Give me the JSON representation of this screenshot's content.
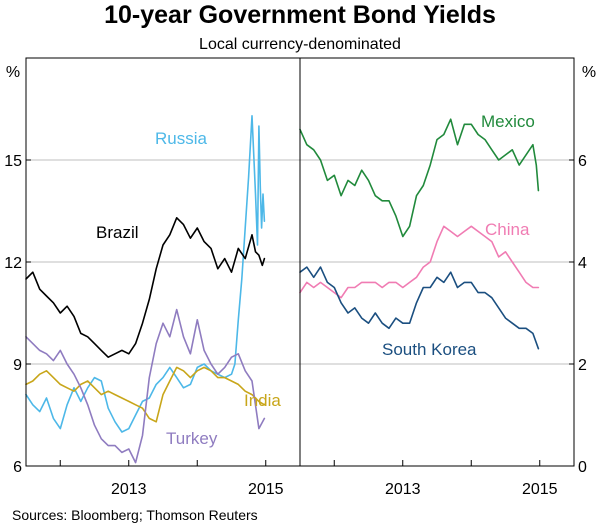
{
  "title": "10-year Government Bond Yields",
  "subtitle": "Local currency-denominated",
  "source": "Sources:   Bloomberg; Thomson Reuters",
  "chart_data": [
    {
      "type": "line",
      "panel": "left",
      "ylabel": "%",
      "ylim": [
        6,
        18
      ],
      "yticks": [
        6,
        9,
        12,
        15
      ],
      "xlim": [
        2011.5,
        2015.5
      ],
      "xticks": [
        2013,
        2015
      ],
      "xtick_labels": [
        "2013",
        "2015"
      ],
      "grid": true,
      "series": [
        {
          "name": "Russia",
          "color": "#4db8e8",
          "x": [
            2011.5,
            2011.6,
            2011.7,
            2011.8,
            2011.9,
            2012.0,
            2012.1,
            2012.2,
            2012.3,
            2012.4,
            2012.5,
            2012.6,
            2012.7,
            2012.8,
            2012.9,
            2013.0,
            2013.1,
            2013.2,
            2013.3,
            2013.4,
            2013.5,
            2013.6,
            2013.7,
            2013.8,
            2013.9,
            2014.0,
            2014.1,
            2014.2,
            2014.3,
            2014.4,
            2014.5,
            2014.55,
            2014.6,
            2014.65,
            2014.7,
            2014.75,
            2014.8,
            2014.85,
            2014.88,
            2014.9,
            2014.92,
            2014.94,
            2014.96,
            2014.98
          ],
          "values": [
            8.1,
            7.8,
            7.6,
            8.0,
            7.4,
            7.1,
            7.8,
            8.3,
            7.9,
            8.3,
            8.6,
            8.5,
            7.7,
            7.3,
            7.0,
            7.1,
            7.5,
            7.9,
            8.0,
            8.4,
            8.6,
            8.9,
            8.6,
            8.3,
            8.4,
            8.9,
            9.0,
            8.8,
            8.7,
            8.6,
            8.7,
            9.0,
            10.3,
            11.5,
            13.0,
            14.5,
            16.3,
            14.0,
            12.5,
            16.0,
            14.2,
            13.0,
            14.0,
            13.2
          ]
        },
        {
          "name": "Brazil",
          "color": "#000000",
          "x": [
            2011.5,
            2011.6,
            2011.7,
            2011.8,
            2011.9,
            2012.0,
            2012.1,
            2012.2,
            2012.3,
            2012.4,
            2012.5,
            2012.6,
            2012.7,
            2012.8,
            2012.9,
            2013.0,
            2013.1,
            2013.2,
            2013.3,
            2013.4,
            2013.5,
            2013.6,
            2013.7,
            2013.8,
            2013.9,
            2014.0,
            2014.1,
            2014.2,
            2014.3,
            2014.4,
            2014.5,
            2014.6,
            2014.7,
            2014.8,
            2014.85,
            2014.9,
            2014.95,
            2014.98
          ],
          "values": [
            11.5,
            11.7,
            11.2,
            11.0,
            10.8,
            10.5,
            10.7,
            10.4,
            9.9,
            9.8,
            9.6,
            9.4,
            9.2,
            9.3,
            9.4,
            9.3,
            9.6,
            10.2,
            10.9,
            11.8,
            12.5,
            12.8,
            13.3,
            13.1,
            12.7,
            13.0,
            12.6,
            12.4,
            11.8,
            12.1,
            11.7,
            12.4,
            12.1,
            12.8,
            12.3,
            12.2,
            11.9,
            12.1
          ]
        },
        {
          "name": "India",
          "color": "#c8a61a",
          "x": [
            2011.5,
            2011.6,
            2011.7,
            2011.8,
            2011.9,
            2012.0,
            2012.1,
            2012.2,
            2012.3,
            2012.4,
            2012.5,
            2012.6,
            2012.7,
            2012.8,
            2012.9,
            2013.0,
            2013.1,
            2013.2,
            2013.3,
            2013.4,
            2013.5,
            2013.6,
            2013.7,
            2013.8,
            2013.9,
            2014.0,
            2014.1,
            2014.2,
            2014.3,
            2014.4,
            2014.5,
            2014.6,
            2014.7,
            2014.8,
            2014.9,
            2014.98
          ],
          "values": [
            8.4,
            8.5,
            8.7,
            8.8,
            8.6,
            8.4,
            8.3,
            8.2,
            8.4,
            8.5,
            8.3,
            8.1,
            8.2,
            8.1,
            8.0,
            7.9,
            7.8,
            7.7,
            7.4,
            7.3,
            8.1,
            8.5,
            8.9,
            8.8,
            8.6,
            8.8,
            8.9,
            8.8,
            8.6,
            8.6,
            8.5,
            8.4,
            8.2,
            8.1,
            7.9,
            7.8
          ]
        },
        {
          "name": "Turkey",
          "color": "#8f7cc0",
          "x": [
            2011.5,
            2011.6,
            2011.7,
            2011.8,
            2011.9,
            2012.0,
            2012.1,
            2012.2,
            2012.3,
            2012.4,
            2012.5,
            2012.6,
            2012.7,
            2012.8,
            2012.9,
            2013.0,
            2013.1,
            2013.2,
            2013.3,
            2013.4,
            2013.5,
            2013.6,
            2013.7,
            2013.8,
            2013.9,
            2014.0,
            2014.1,
            2014.2,
            2014.3,
            2014.4,
            2014.5,
            2014.6,
            2014.7,
            2014.8,
            2014.9,
            2014.98
          ],
          "values": [
            9.8,
            9.6,
            9.4,
            9.3,
            9.1,
            9.4,
            9.0,
            8.7,
            8.3,
            7.8,
            7.2,
            6.8,
            6.6,
            6.6,
            6.4,
            6.5,
            6.1,
            6.9,
            8.6,
            9.6,
            10.2,
            9.8,
            10.6,
            9.8,
            9.3,
            10.3,
            9.4,
            9.0,
            8.7,
            8.9,
            9.2,
            9.3,
            8.8,
            8.5,
            7.1,
            7.4
          ]
        }
      ],
      "labels": [
        {
          "text": "Russia",
          "series": "Russia"
        },
        {
          "text": "Brazil",
          "series": "Brazil"
        },
        {
          "text": "India",
          "series": "India"
        },
        {
          "text": "Turkey",
          "series": "Turkey"
        }
      ]
    },
    {
      "type": "line",
      "panel": "right",
      "ylabel": "%",
      "ylim": [
        0,
        8
      ],
      "yticks": [
        0,
        2,
        4,
        6
      ],
      "xlim": [
        2011.5,
        2015.5
      ],
      "xticks": [
        2013,
        2015
      ],
      "xtick_labels": [
        "2013",
        "2015"
      ],
      "grid": true,
      "series": [
        {
          "name": "Mexico",
          "color": "#218a3c",
          "x": [
            2011.5,
            2011.6,
            2011.7,
            2011.8,
            2011.9,
            2012.0,
            2012.1,
            2012.2,
            2012.3,
            2012.4,
            2012.5,
            2012.6,
            2012.7,
            2012.8,
            2012.9,
            2013.0,
            2013.1,
            2013.2,
            2013.3,
            2013.4,
            2013.5,
            2013.6,
            2013.7,
            2013.8,
            2013.9,
            2014.0,
            2014.1,
            2014.2,
            2014.3,
            2014.4,
            2014.5,
            2014.6,
            2014.7,
            2014.8,
            2014.9,
            2014.95,
            2014.98
          ],
          "values": [
            6.6,
            6.3,
            6.2,
            6.0,
            5.6,
            5.7,
            5.3,
            5.6,
            5.5,
            5.8,
            5.6,
            5.3,
            5.2,
            5.2,
            4.9,
            4.5,
            4.7,
            5.3,
            5.5,
            5.9,
            6.4,
            6.5,
            6.8,
            6.3,
            6.7,
            6.7,
            6.5,
            6.4,
            6.2,
            6.0,
            6.1,
            6.2,
            5.9,
            6.1,
            6.3,
            5.9,
            5.4
          ]
        },
        {
          "name": "China",
          "color": "#f07cb3",
          "x": [
            2011.5,
            2011.6,
            2011.7,
            2011.8,
            2011.9,
            2012.0,
            2012.1,
            2012.2,
            2012.3,
            2012.4,
            2012.5,
            2012.6,
            2012.7,
            2012.8,
            2012.9,
            2013.0,
            2013.1,
            2013.2,
            2013.3,
            2013.4,
            2013.5,
            2013.6,
            2013.7,
            2013.8,
            2013.9,
            2014.0,
            2014.1,
            2014.2,
            2014.3,
            2014.4,
            2014.5,
            2014.6,
            2014.7,
            2014.8,
            2014.9,
            2014.98
          ],
          "values": [
            3.4,
            3.6,
            3.5,
            3.6,
            3.5,
            3.4,
            3.3,
            3.5,
            3.5,
            3.6,
            3.6,
            3.6,
            3.5,
            3.6,
            3.6,
            3.5,
            3.6,
            3.7,
            3.9,
            4.0,
            4.4,
            4.7,
            4.6,
            4.5,
            4.6,
            4.7,
            4.6,
            4.5,
            4.4,
            4.1,
            4.2,
            4.0,
            3.8,
            3.6,
            3.5,
            3.5
          ]
        },
        {
          "name": "South Korea",
          "color": "#1b4f80",
          "x": [
            2011.5,
            2011.6,
            2011.7,
            2011.8,
            2011.9,
            2012.0,
            2012.1,
            2012.2,
            2012.3,
            2012.4,
            2012.5,
            2012.6,
            2012.7,
            2012.8,
            2012.9,
            2013.0,
            2013.1,
            2013.2,
            2013.3,
            2013.4,
            2013.5,
            2013.6,
            2013.7,
            2013.8,
            2013.9,
            2014.0,
            2014.1,
            2014.2,
            2014.3,
            2014.4,
            2014.5,
            2014.6,
            2014.7,
            2014.8,
            2014.9,
            2014.98
          ],
          "values": [
            3.8,
            3.9,
            3.7,
            3.9,
            3.6,
            3.5,
            3.2,
            3.0,
            3.1,
            2.9,
            2.8,
            3.0,
            2.8,
            2.7,
            2.9,
            2.8,
            2.8,
            3.2,
            3.5,
            3.5,
            3.7,
            3.6,
            3.8,
            3.5,
            3.6,
            3.6,
            3.4,
            3.4,
            3.3,
            3.1,
            2.9,
            2.8,
            2.7,
            2.7,
            2.6,
            2.3
          ]
        }
      ],
      "labels": [
        {
          "text": "Mexico",
          "series": "Mexico"
        },
        {
          "text": "China",
          "series": "China"
        },
        {
          "text": "South Korea",
          "series": "South Korea"
        }
      ]
    }
  ]
}
